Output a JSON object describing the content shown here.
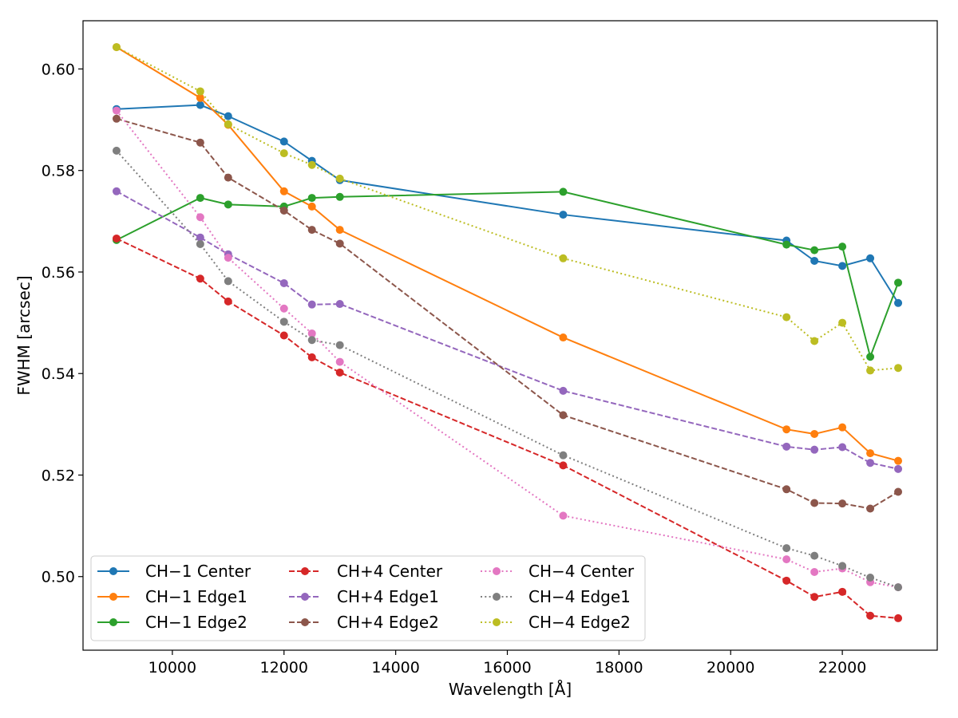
{
  "chart_data": {
    "type": "line",
    "title": "",
    "xlabel": "Wavelength [Å]",
    "ylabel": "FWHM [arcsec]",
    "xlim": [
      8400,
      23700
    ],
    "ylim": [
      0.4855,
      0.6095
    ],
    "xticks": [
      10000,
      12000,
      14000,
      16000,
      18000,
      20000,
      22000
    ],
    "xtick_labels": [
      "10000",
      "12000",
      "14000",
      "16000",
      "18000",
      "20000",
      "22000"
    ],
    "yticks": [
      0.5,
      0.52,
      0.54,
      0.56,
      0.58,
      0.6
    ],
    "ytick_labels": [
      "0.50",
      "0.52",
      "0.54",
      "0.56",
      "0.58",
      "0.60"
    ],
    "grid": false,
    "legend_position": "lower-left",
    "legend_columns": 3,
    "x": [
      9000,
      10500,
      11000,
      12000,
      12500,
      13000,
      17000,
      21000,
      21500,
      22000,
      22500,
      23000
    ],
    "series": [
      {
        "name": "CH−1 Center",
        "color": "#1f77b4",
        "linestyle": "solid",
        "values": [
          0.5921,
          0.5929,
          0.5907,
          0.5857,
          0.5819,
          0.5781,
          0.5713,
          0.5662,
          0.5622,
          0.5612,
          0.5627,
          0.5539
        ]
      },
      {
        "name": "CH−1 Edge1",
        "color": "#ff7f0e",
        "linestyle": "solid",
        "values": [
          0.6043,
          0.5943,
          0.589,
          0.5759,
          0.5729,
          0.5683,
          0.5471,
          0.529,
          0.5281,
          0.5294,
          0.5243,
          0.5228
        ]
      },
      {
        "name": "CH−1 Edge2",
        "color": "#2ca02c",
        "linestyle": "solid",
        "values": [
          0.5663,
          0.5746,
          0.5733,
          0.5729,
          0.5746,
          0.5748,
          0.5758,
          0.5654,
          0.5643,
          0.565,
          0.5433,
          0.5579
        ]
      },
      {
        "name": "CH+4 Center",
        "color": "#d62728",
        "linestyle": "dashed",
        "values": [
          0.5666,
          0.5587,
          0.5542,
          0.5475,
          0.5432,
          0.5402,
          0.5219,
          0.4992,
          0.496,
          0.497,
          0.4923,
          0.4918
        ]
      },
      {
        "name": "CH+4 Edge1",
        "color": "#9467bd",
        "linestyle": "dashed",
        "values": [
          0.5759,
          0.5668,
          0.5635,
          0.5578,
          0.5536,
          0.5537,
          0.5366,
          0.5256,
          0.525,
          0.5255,
          0.5224,
          0.5212
        ]
      },
      {
        "name": "CH+4 Edge2",
        "color": "#8c564b",
        "linestyle": "dashed",
        "values": [
          0.5902,
          0.5855,
          0.5786,
          0.5721,
          0.5683,
          0.5656,
          0.5318,
          0.5172,
          0.5145,
          0.5144,
          0.5134,
          0.5167
        ]
      },
      {
        "name": "CH−4 Center",
        "color": "#e377c2",
        "linestyle": "dotted",
        "values": [
          0.5918,
          0.5708,
          0.5628,
          0.5528,
          0.5479,
          0.5423,
          0.512,
          0.5034,
          0.5009,
          0.5016,
          0.4989,
          0.4979
        ]
      },
      {
        "name": "CH−4 Edge1",
        "color": "#7f7f7f",
        "linestyle": "dotted",
        "values": [
          0.5839,
          0.5655,
          0.5582,
          0.5502,
          0.5466,
          0.5456,
          0.5239,
          0.5056,
          0.5041,
          0.5021,
          0.4998,
          0.4979
        ]
      },
      {
        "name": "CH−4 Edge2",
        "color": "#bcbd22",
        "linestyle": "dotted",
        "values": [
          0.6043,
          0.5956,
          0.5891,
          0.5834,
          0.5811,
          0.5784,
          0.5627,
          0.5511,
          0.5464,
          0.55,
          0.5406,
          0.5411
        ]
      }
    ]
  }
}
